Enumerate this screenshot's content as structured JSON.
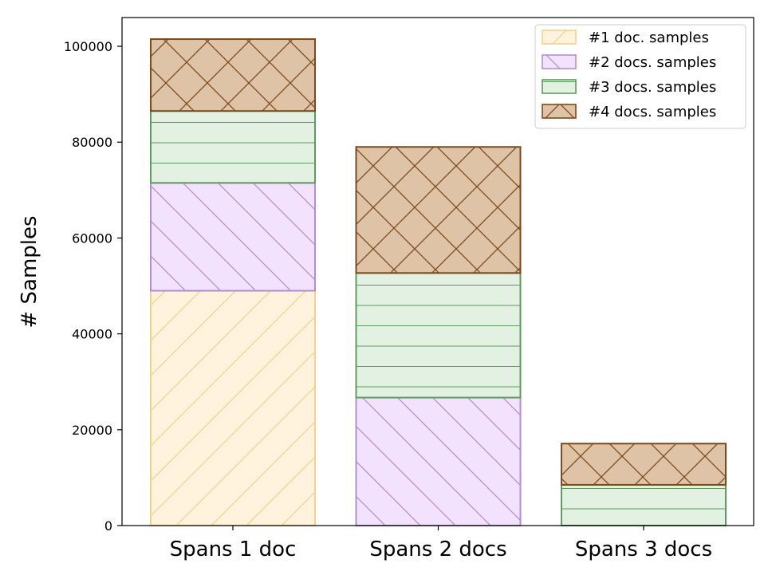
{
  "chart_data": {
    "type": "bar",
    "stacked": true,
    "categories": [
      "Spans 1 doc",
      "Spans 2 docs",
      "Spans 3 docs"
    ],
    "ylabel": "# Samples",
    "xlabel": "",
    "ylim": [
      0,
      106000
    ],
    "yticks": [
      0,
      20000,
      40000,
      60000,
      80000,
      100000
    ],
    "legend_position": "top-right",
    "grid": false,
    "series": [
      {
        "name": "#1 doc. samples",
        "values": [
          49000,
          0,
          0
        ],
        "fill": "#fff3dd",
        "stroke": "#f5d28a",
        "hatch": "diag-up"
      },
      {
        "name": "#2 docs. samples",
        "values": [
          22500,
          26700,
          0
        ],
        "fill": "#f3e2fd",
        "stroke": "#b48fd0",
        "hatch": "diag-down"
      },
      {
        "name": "#3 docs. samples",
        "values": [
          15000,
          26000,
          8500
        ],
        "fill": "#e2f1e2",
        "stroke": "#5f9b5f",
        "hatch": "horizontal"
      },
      {
        "name": "#4 docs. samples",
        "values": [
          15000,
          26300,
          8600
        ],
        "fill": "#dfc3a6",
        "stroke": "#7b4a1e",
        "hatch": "cross"
      }
    ]
  }
}
